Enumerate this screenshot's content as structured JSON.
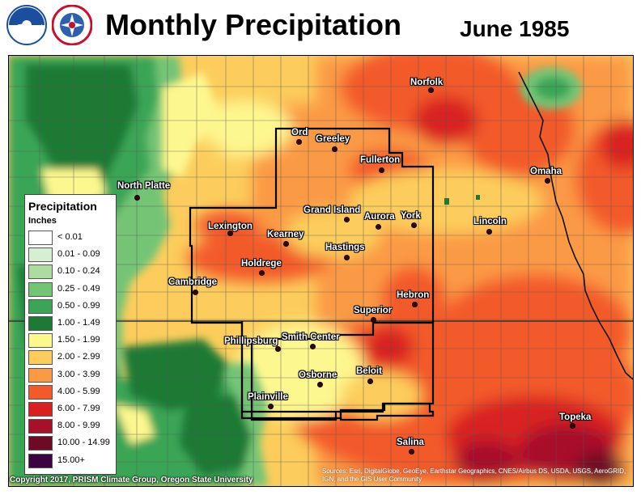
{
  "header": {
    "title": "Monthly Precipitation",
    "date": "June 1985"
  },
  "legend": {
    "title": "Precipitation",
    "units": "Inches",
    "classes": [
      {
        "label": "< 0.01",
        "color": "#ffffff"
      },
      {
        "label": "0.01 - 0.09",
        "color": "#d6efd0"
      },
      {
        "label": "0.10 - 0.24",
        "color": "#aedca0"
      },
      {
        "label": "0.25 - 0.49",
        "color": "#74c476"
      },
      {
        "label": "0.50 - 0.99",
        "color": "#3aa556"
      },
      {
        "label": "1.00 - 1.49",
        "color": "#1c7a34"
      },
      {
        "label": "1.50 - 1.99",
        "color": "#fdf78f"
      },
      {
        "label": "2.00 - 2.99",
        "color": "#fccd5c"
      },
      {
        "label": "3.00 - 3.99",
        "color": "#fb9a44"
      },
      {
        "label": "4.00 - 5.99",
        "color": "#f35a2a"
      },
      {
        "label": "6.00 - 7.99",
        "color": "#d92020"
      },
      {
        "label": "8.00 - 9.99",
        "color": "#a8102a"
      },
      {
        "label": "10.00 - 14.99",
        "color": "#6e0a26"
      },
      {
        "label": "15.00+",
        "color": "#3b0340"
      }
    ]
  },
  "cities": [
    {
      "name": "Norfolk"
    },
    {
      "name": "Ord"
    },
    {
      "name": "Greeley"
    },
    {
      "name": "Fullerton"
    },
    {
      "name": "Omaha"
    },
    {
      "name": "North Platte"
    },
    {
      "name": "Grand Island"
    },
    {
      "name": "Aurora"
    },
    {
      "name": "York"
    },
    {
      "name": "Lincoln"
    },
    {
      "name": "Lexington"
    },
    {
      "name": "Kearney"
    },
    {
      "name": "Hastings"
    },
    {
      "name": "Holdrege"
    },
    {
      "name": "Cambridge"
    },
    {
      "name": "Hebron"
    },
    {
      "name": "Superior"
    },
    {
      "name": "Phillipsburg"
    },
    {
      "name": "Smith Center"
    },
    {
      "name": "Osborne"
    },
    {
      "name": "Beloit"
    },
    {
      "name": "Plainville"
    },
    {
      "name": "Topeka"
    },
    {
      "name": "Salina"
    }
  ],
  "footer": {
    "copyright": "Copyright 2017, PRISM Climate Group, Oregon State University",
    "sources": "Sources: Esri, DigitalGlobe, GeoEye, Earthstar Geographics, CNES/Airbus DS, USDA, USGS, AeroGRID, IGN, and the GIS User Community"
  }
}
